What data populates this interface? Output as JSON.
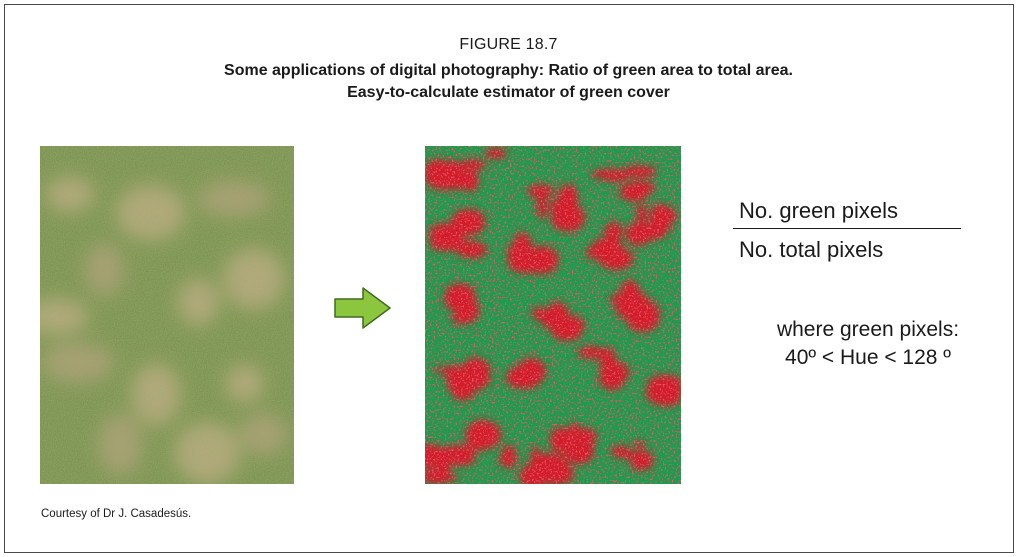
{
  "figure": {
    "label": "FIGURE 18.7",
    "title_line1": "Some applications of digital photography: Ratio of green area to total area.",
    "title_line2": "Easy-to-calculate estimator of green cover"
  },
  "images": {
    "left": "grass-photo",
    "right": "green-red-classified-image",
    "colors": {
      "green_pixels": "#1e9a4e",
      "non_green_pixels": "#d21e2a",
      "arrow_fill": "#8cc63f"
    }
  },
  "formula": {
    "numerator": "No. green pixels",
    "denominator": "No. total pixels"
  },
  "condition": {
    "line1": "where green pixels:",
    "line2": "40º < Hue < 128 º"
  },
  "credit": "Courtesy of Dr J. Casadesús."
}
